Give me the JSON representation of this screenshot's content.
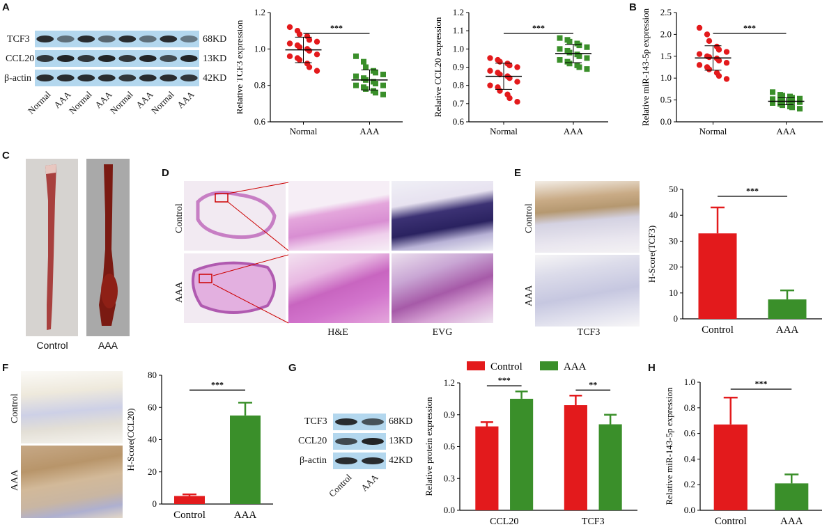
{
  "panels": {
    "A": "A",
    "B": "B",
    "C": "C",
    "D": "D",
    "E": "E",
    "F": "F",
    "G": "G",
    "H": "H"
  },
  "blotA": {
    "rows": [
      "TCF3",
      "CCL20",
      "β-actin"
    ],
    "sizes": [
      "68KD",
      "13KD",
      "42KD"
    ],
    "lanes": [
      "Normal",
      "AAA",
      "Normal",
      "AAA",
      "Normal",
      "AAA",
      "Normal",
      "AAA"
    ]
  },
  "photoC": {
    "labels": [
      "Control",
      "AAA"
    ]
  },
  "histD": {
    "row_labels": [
      "Control",
      "AAA"
    ],
    "captions": [
      "H&E",
      "EVG"
    ]
  },
  "ihcE": {
    "row_labels": [
      "Control",
      "AAA"
    ],
    "caption": "TCF3"
  },
  "ihcF": {
    "row_labels": [
      "Control",
      "AAA"
    ]
  },
  "blotG": {
    "rows": [
      "TCF3",
      "CCL20",
      "β-actin"
    ],
    "sizes": [
      "68KD",
      "13KD",
      "42KD"
    ],
    "lanes": [
      "Control",
      "AAA"
    ]
  },
  "colors": {
    "red": "#e31a1c",
    "green": "#3a8f2a",
    "blot_bg": "#b3d7ee"
  },
  "chart_data": [
    {
      "id": "tcf3",
      "type": "scatter",
      "categories": [
        "Normal",
        "AAA"
      ],
      "ylabel": "Relative TCF3 expression",
      "ylim": [
        0.6,
        1.2
      ],
      "yticks": [
        "0.6",
        "0.8",
        "1.0",
        "1.2"
      ],
      "series": [
        {
          "category": "Normal",
          "color": "#e31a1c",
          "marker": "circle",
          "mean": 0.995,
          "sd": 0.07,
          "values": [
            1.12,
            1.1,
            1.08,
            1.07,
            1.05,
            1.04,
            1.03,
            1.02,
            1.01,
            1.0,
            0.99,
            0.97,
            0.96,
            0.95,
            0.94,
            0.92,
            0.9,
            0.88
          ]
        },
        {
          "category": "AAA",
          "color": "#3a8f2a",
          "marker": "square",
          "mean": 0.83,
          "sd": 0.055,
          "values": [
            0.96,
            0.93,
            0.9,
            0.88,
            0.87,
            0.86,
            0.85,
            0.84,
            0.83,
            0.82,
            0.81,
            0.8,
            0.8,
            0.79,
            0.78,
            0.77,
            0.76,
            0.75
          ]
        }
      ],
      "significance": "***"
    },
    {
      "id": "ccl20",
      "type": "scatter",
      "categories": [
        "Normal",
        "AAA"
      ],
      "ylabel": "Relative CCL20 expression",
      "ylim": [
        0.6,
        1.2
      ],
      "yticks": [
        "0.6",
        "0.7",
        "0.8",
        "0.9",
        "1.0",
        "1.1",
        "1.2"
      ],
      "series": [
        {
          "category": "Normal",
          "color": "#e31a1c",
          "marker": "circle",
          "mean": 0.85,
          "sd": 0.072,
          "values": [
            0.95,
            0.94,
            0.93,
            0.92,
            0.91,
            0.9,
            0.88,
            0.87,
            0.86,
            0.85,
            0.84,
            0.82,
            0.8,
            0.79,
            0.77,
            0.75,
            0.73,
            0.71
          ]
        },
        {
          "category": "AAA",
          "color": "#3a8f2a",
          "marker": "square",
          "mean": 0.975,
          "sd": 0.05,
          "values": [
            1.06,
            1.05,
            1.04,
            1.03,
            1.02,
            1.01,
            1.0,
            0.99,
            0.98,
            0.97,
            0.96,
            0.95,
            0.94,
            0.93,
            0.92,
            0.91,
            0.9,
            0.89
          ]
        }
      ],
      "significance": "***"
    },
    {
      "id": "mir_b",
      "type": "scatter",
      "categories": [
        "Normal",
        "AAA"
      ],
      "ylabel": "Relative miR-143-5p expression",
      "ylim": [
        0.0,
        2.5
      ],
      "yticks": [
        "0.0",
        "0.5",
        "1.0",
        "1.5",
        "2.0",
        "2.5"
      ],
      "series": [
        {
          "category": "Normal",
          "color": "#e31a1c",
          "marker": "circle",
          "mean": 1.46,
          "sd": 0.28,
          "values": [
            2.15,
            2.0,
            1.85,
            1.72,
            1.65,
            1.6,
            1.55,
            1.5,
            1.48,
            1.45,
            1.4,
            1.35,
            1.3,
            1.25,
            1.2,
            1.12,
            1.05,
            0.98
          ]
        },
        {
          "category": "AAA",
          "color": "#3a8f2a",
          "marker": "square",
          "mean": 0.47,
          "sd": 0.08,
          "values": [
            0.68,
            0.62,
            0.6,
            0.58,
            0.55,
            0.53,
            0.52,
            0.5,
            0.49,
            0.48,
            0.47,
            0.45,
            0.43,
            0.41,
            0.38,
            0.35,
            0.33,
            0.3
          ]
        }
      ],
      "significance": "***"
    },
    {
      "id": "hscore_tcf3",
      "type": "bar",
      "categories": [
        "Control",
        "AAA"
      ],
      "values": [
        33,
        7.5
      ],
      "errors": [
        10,
        3.5
      ],
      "colors": [
        "#e31a1c",
        "#3a8f2a"
      ],
      "ylabel": "H-Score(TCF3)",
      "ylim": [
        0,
        50
      ],
      "yticks": [
        "0",
        "10",
        "20",
        "30",
        "40",
        "50"
      ],
      "significance": "***"
    },
    {
      "id": "hscore_ccl20",
      "type": "bar",
      "categories": [
        "Control",
        "AAA"
      ],
      "values": [
        5,
        55
      ],
      "errors": [
        1,
        8
      ],
      "colors": [
        "#e31a1c",
        "#3a8f2a"
      ],
      "ylabel": "H-Score(CCL20)",
      "ylim": [
        0,
        80
      ],
      "yticks": [
        "0",
        "20",
        "40",
        "60",
        "80"
      ],
      "significance": "***"
    },
    {
      "id": "protein",
      "type": "bar",
      "categories": [
        "CCL20",
        "TCF3"
      ],
      "series": [
        {
          "name": "Control",
          "color": "#e31a1c",
          "values": [
            0.79,
            0.99
          ],
          "errors": [
            0.04,
            0.09
          ]
        },
        {
          "name": "AAA",
          "color": "#3a8f2a",
          "values": [
            1.05,
            0.81
          ],
          "errors": [
            0.07,
            0.09
          ]
        }
      ],
      "ylabel": "Relative protein expression",
      "ylim": [
        0,
        1.2
      ],
      "yticks": [
        "0.0",
        "0.3",
        "0.6",
        "0.9",
        "1.2"
      ],
      "significance": [
        "***",
        "**"
      ],
      "legend": "top"
    },
    {
      "id": "mir_h",
      "type": "bar",
      "categories": [
        "Control",
        "AAA"
      ],
      "values": [
        0.67,
        0.21
      ],
      "errors": [
        0.21,
        0.07
      ],
      "colors": [
        "#e31a1c",
        "#3a8f2a"
      ],
      "ylabel": "Relative miR-143-5p expression",
      "ylim": [
        0,
        1.0
      ],
      "yticks": [
        "0.0",
        "0.2",
        "0.4",
        "0.6",
        "0.8",
        "1.0"
      ],
      "significance": "***"
    }
  ]
}
